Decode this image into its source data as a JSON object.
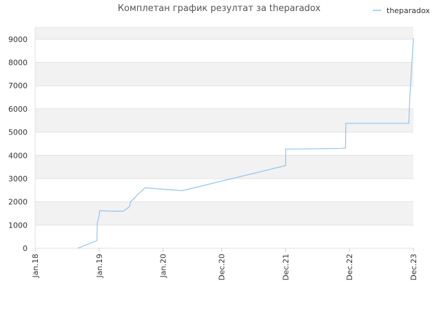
{
  "chart_data": {
    "type": "line",
    "title": "Комплетан график резултат за theparadox",
    "xlabel": "",
    "ylabel": "",
    "legend_position": "top-right",
    "grid": true,
    "ylim": [
      0,
      9500
    ],
    "y_ticks": [
      0,
      1000,
      2000,
      3000,
      4000,
      5000,
      6000,
      7000,
      8000,
      9000
    ],
    "x_ticks": [
      {
        "label": "Jan.18",
        "date": "2018-01-01"
      },
      {
        "label": "Jan.19",
        "date": "2019-01-01"
      },
      {
        "label": "Jan.20",
        "date": "2020-01-01"
      },
      {
        "label": "Dec.20",
        "date": "2020-12-01"
      },
      {
        "label": "Dec.21",
        "date": "2021-12-01"
      },
      {
        "label": "Dec.22",
        "date": "2022-12-01"
      },
      {
        "label": "Dec.23",
        "date": "2023-12-01"
      }
    ],
    "series": [
      {
        "name": "theparadox",
        "color": "#8cc4ef",
        "points": [
          {
            "date": "2018-09-01",
            "value": 0
          },
          {
            "date": "2018-12-20",
            "value": 330
          },
          {
            "date": "2018-12-22",
            "value": 1100
          },
          {
            "date": "2019-01-01",
            "value": 1380
          },
          {
            "date": "2019-01-05",
            "value": 1620
          },
          {
            "date": "2019-03-01",
            "value": 1600
          },
          {
            "date": "2019-05-20",
            "value": 1590
          },
          {
            "date": "2019-06-25",
            "value": 1800
          },
          {
            "date": "2019-06-28",
            "value": 1980
          },
          {
            "date": "2019-08-15",
            "value": 2350
          },
          {
            "date": "2019-09-20",
            "value": 2600
          },
          {
            "date": "2020-04-20",
            "value": 2480
          },
          {
            "date": "2021-12-01",
            "value": 3560
          },
          {
            "date": "2021-12-02",
            "value": 4270
          },
          {
            "date": "2022-06-10",
            "value": 4280
          },
          {
            "date": "2022-10-20",
            "value": 4300
          },
          {
            "date": "2022-11-08",
            "value": 4320
          },
          {
            "date": "2022-11-10",
            "value": 5380
          },
          {
            "date": "2023-11-05",
            "value": 5380
          },
          {
            "date": "2023-11-10",
            "value": 6500
          },
          {
            "date": "2023-11-20",
            "value": 7700
          },
          {
            "date": "2023-12-01",
            "value": 9050
          }
        ]
      }
    ]
  }
}
